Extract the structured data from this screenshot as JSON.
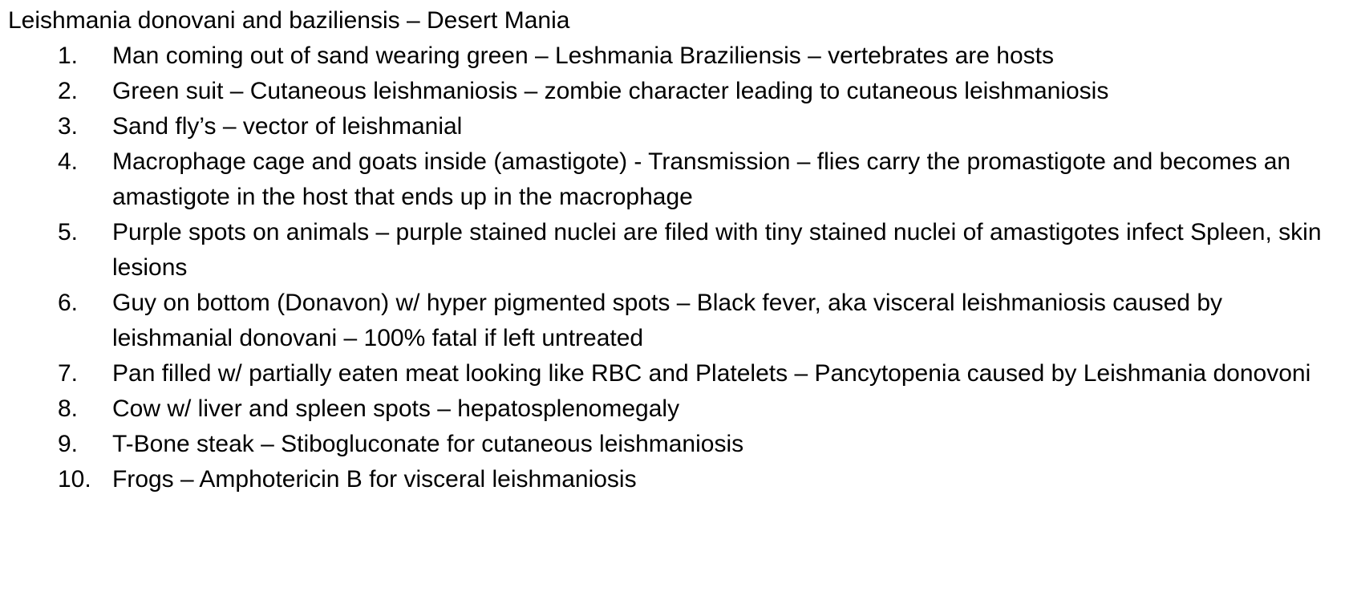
{
  "document": {
    "title": "Leishmania donovani and baziliensis – Desert Mania",
    "items": [
      {
        "number": "1.",
        "text": "Man coming out of sand wearing green – Leshmania Braziliensis – vertebrates are hosts"
      },
      {
        "number": "2.",
        "text": "Green suit – Cutaneous leishmaniosis – zombie character leading to cutaneous leishmaniosis"
      },
      {
        "number": "3.",
        "text": "Sand fly’s – vector of leishmanial"
      },
      {
        "number": "4.",
        "text": "Macrophage cage and goats inside (amastigote) - Transmission – flies carry the promastigote and becomes an amastigote in the host that ends up in the macrophage"
      },
      {
        "number": "5.",
        "text": "Purple spots on animals – purple stained nuclei are filed with tiny stained nuclei of amastigotes infect Spleen, skin lesions"
      },
      {
        "number": "6.",
        "text": "Guy on bottom (Donavon) w/ hyper pigmented spots – Black fever, aka visceral leishmaniosis caused by leishmanial donovani – 100% fatal if left untreated"
      },
      {
        "number": "7.",
        "text": "Pan filled w/ partially eaten meat looking like RBC and Platelets – Pancytopenia caused by Leishmania donovoni"
      },
      {
        "number": "8.",
        "text": "Cow w/ liver and spleen spots – hepatosplenomegaly"
      },
      {
        "number": "9.",
        "text": "T-Bone steak – Stibogluconate for cutaneous leishmaniosis"
      },
      {
        "number": "10.",
        "text": "Frogs – Amphotericin B for visceral leishmaniosis"
      }
    ]
  }
}
